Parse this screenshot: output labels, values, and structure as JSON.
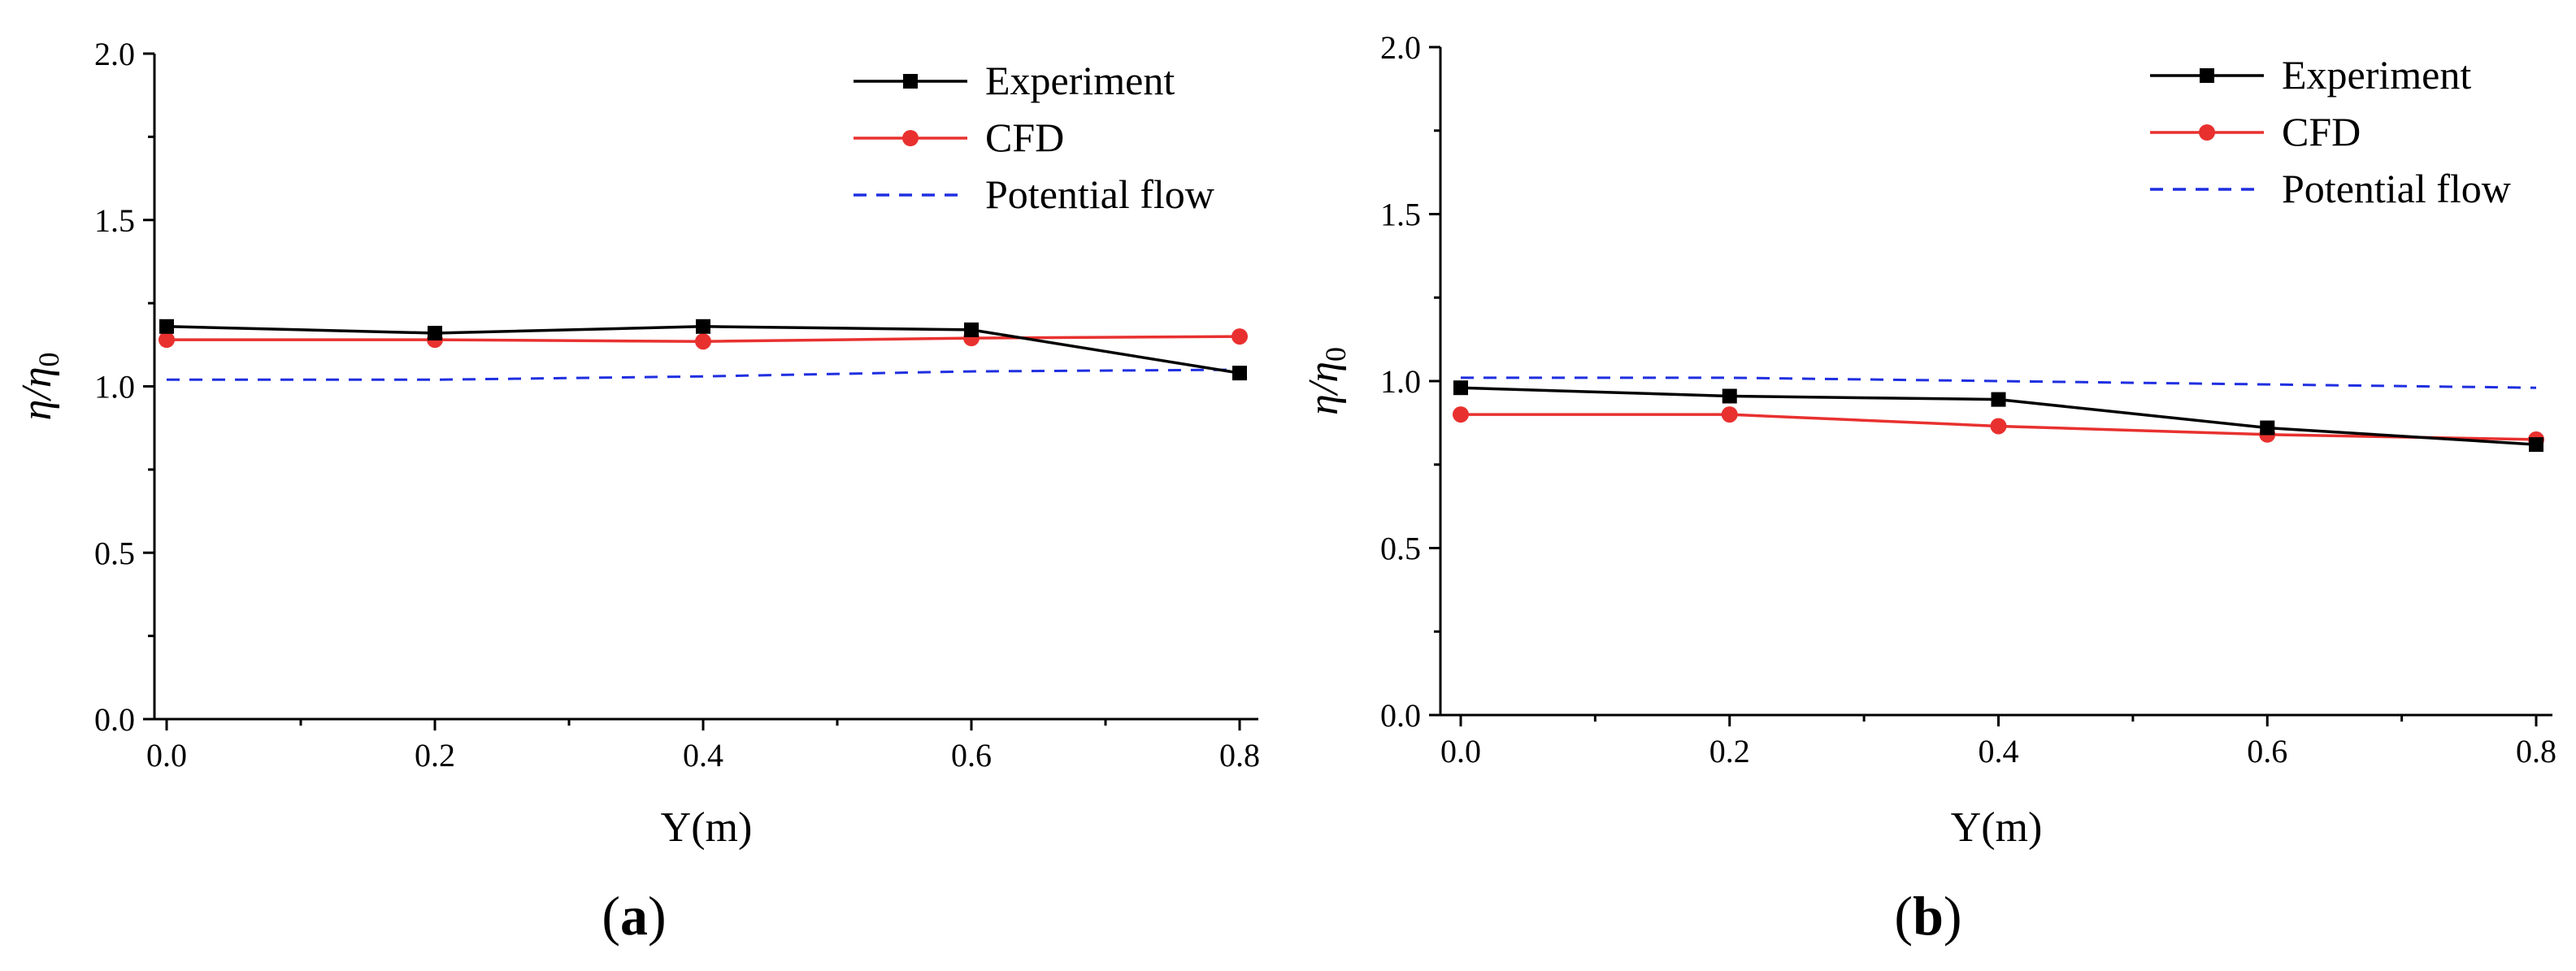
{
  "figure": {
    "panels": [
      {
        "label_open": "(",
        "label_letter": "a",
        "label_close": ")"
      },
      {
        "label_open": "(",
        "label_letter": "b",
        "label_close": ")"
      }
    ]
  },
  "chart_data": [
    {
      "type": "line",
      "panel": "a",
      "xlabel": "Y(m)",
      "ylabel_parts": {
        "main": "η/η",
        "subscript": "0"
      },
      "xlim": [
        0.0,
        0.8
      ],
      "ylim": [
        0.0,
        2.0
      ],
      "x_ticks": [
        "0.0",
        "0.2",
        "0.4",
        "0.6",
        "0.8"
      ],
      "y_ticks": [
        "0.0",
        "0.5",
        "1.0",
        "1.5",
        "2.0"
      ],
      "legend_position": "top-right",
      "series": [
        {
          "name": "Experiment",
          "color": "#000000",
          "marker": "square",
          "dash": "solid",
          "x": [
            0.0,
            0.2,
            0.4,
            0.6,
            0.8
          ],
          "y": [
            1.18,
            1.16,
            1.18,
            1.17,
            1.04
          ]
        },
        {
          "name": "CFD",
          "color": "#e8312f",
          "marker": "circle",
          "dash": "solid",
          "x": [
            0.0,
            0.2,
            0.4,
            0.6,
            0.8
          ],
          "y": [
            1.14,
            1.14,
            1.135,
            1.145,
            1.15
          ]
        },
        {
          "name": "Potential flow",
          "color": "#1f2fe0",
          "marker": "none",
          "dash": "dashed",
          "x": [
            0.0,
            0.2,
            0.4,
            0.6,
            0.8
          ],
          "y": [
            1.02,
            1.02,
            1.03,
            1.045,
            1.05
          ]
        }
      ]
    },
    {
      "type": "line",
      "panel": "b",
      "xlabel": "Y(m)",
      "ylabel_parts": {
        "main": "η/η",
        "subscript": "0"
      },
      "xlim": [
        0.0,
        0.8
      ],
      "ylim": [
        0.0,
        2.0
      ],
      "x_ticks": [
        "0.0",
        "0.2",
        "0.4",
        "0.6",
        "0.8"
      ],
      "y_ticks": [
        "0.0",
        "0.5",
        "1.0",
        "1.5",
        "2.0"
      ],
      "legend_position": "top-right",
      "series": [
        {
          "name": "Experiment",
          "color": "#000000",
          "marker": "square",
          "dash": "solid",
          "x": [
            0.0,
            0.2,
            0.4,
            0.6,
            0.8
          ],
          "y": [
            0.98,
            0.955,
            0.945,
            0.86,
            0.81
          ]
        },
        {
          "name": "CFD",
          "color": "#e8312f",
          "marker": "circle",
          "dash": "solid",
          "x": [
            0.0,
            0.2,
            0.4,
            0.6,
            0.8
          ],
          "y": [
            0.9,
            0.9,
            0.865,
            0.84,
            0.825
          ]
        },
        {
          "name": "Potential flow",
          "color": "#1f2fe0",
          "marker": "none",
          "dash": "dashed",
          "x": [
            0.0,
            0.2,
            0.4,
            0.6,
            0.8
          ],
          "y": [
            1.01,
            1.01,
            1.0,
            0.99,
            0.98
          ]
        }
      ]
    }
  ]
}
